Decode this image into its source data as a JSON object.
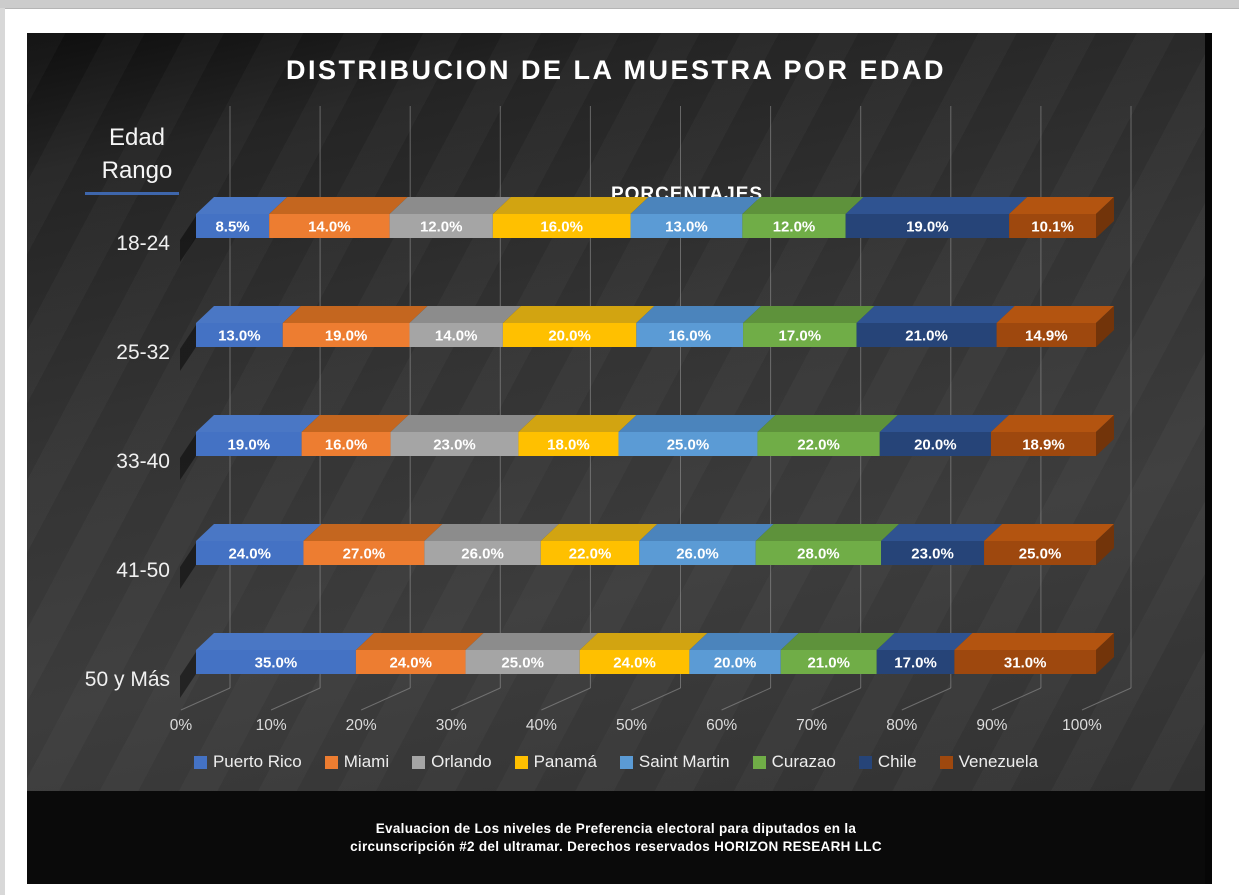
{
  "footer": {
    "line1": "Evaluacion de Los niveles de Preferencia electoral para diputados en la",
    "line2": "circunscripción #2 del ultramar. Derechos reservados HORIZON RESEARH LLC"
  },
  "chart_data": {
    "type": "bar",
    "subtype": "100_percent_stacked_horizontal_3d",
    "title": "DISTRIBUCION DE LA MUESTRA POR EDAD",
    "x_axis_label": "PORCENTAJES",
    "y_axis_label_lines": [
      "Edad",
      "Rango"
    ],
    "categories": [
      "18-24",
      "25-32",
      "33-40",
      "41-50",
      "50 y Más"
    ],
    "x_ticks": [
      "0%",
      "10%",
      "20%",
      "30%",
      "40%",
      "50%",
      "60%",
      "70%",
      "80%",
      "90%",
      "100%"
    ],
    "x_range": [
      0,
      100
    ],
    "grid": true,
    "legend_position": "bottom",
    "data_label_format": "one_decimal_percent",
    "background_color": "#333333",
    "text_color": "#ffffff",
    "series": [
      {
        "name": "Puerto Rico",
        "color": "#4472C4",
        "top_color": "#4a77c5",
        "values": [
          8.5,
          13.0,
          19.0,
          24.0,
          35.0
        ]
      },
      {
        "name": "Miami",
        "color": "#ED7D31",
        "top_color": "#c4661f",
        "values": [
          14.0,
          19.0,
          16.0,
          27.0,
          24.0
        ]
      },
      {
        "name": "Orlando",
        "color": "#A5A5A5",
        "top_color": "#8c8c8c",
        "values": [
          12.0,
          14.0,
          23.0,
          26.0,
          25.0
        ]
      },
      {
        "name": "Panamá",
        "color": "#FFC000",
        "top_color": "#d2a411",
        "values": [
          16.0,
          20.0,
          18.0,
          22.0,
          24.0
        ]
      },
      {
        "name": "Saint Martin",
        "color": "#5B9BD5",
        "top_color": "#4b84bc",
        "values": [
          13.0,
          16.0,
          25.0,
          26.0,
          20.0
        ]
      },
      {
        "name": "Curazao",
        "color": "#70AD47",
        "top_color": "#5e923b",
        "values": [
          12.0,
          17.0,
          22.0,
          28.0,
          21.0
        ]
      },
      {
        "name": "Chile",
        "color": "#264478",
        "top_color": "#2f5391",
        "values": [
          19.0,
          21.0,
          20.0,
          23.0,
          17.0
        ]
      },
      {
        "name": "Venezuela",
        "color": "#9E480E",
        "top_color": "#b35410",
        "values": [
          10.1,
          14.9,
          18.9,
          25.0,
          31.0
        ]
      }
    ]
  }
}
